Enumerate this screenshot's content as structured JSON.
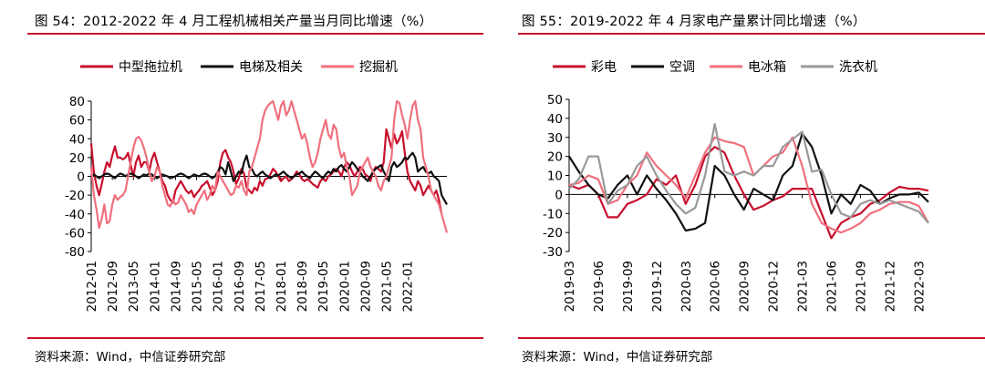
{
  "left": {
    "title": "图 54：2012-2022 年 4 月工程机械相关产量当月同比增速（%）",
    "source": "资料来源：Wind，中信证券研究部"
  },
  "right": {
    "title": "图 55：2019-2022 年 4 月家电产量累计同比增速（%）",
    "source": "资料来源：Wind，中信证券研究部"
  },
  "chart_data": [
    {
      "type": "line",
      "ylim": [
        -80,
        80
      ],
      "yticks": [
        80,
        60,
        40,
        20,
        0,
        -20,
        -40,
        -60,
        -80
      ],
      "x_tick_labels": [
        "2012-01",
        "2012-09",
        "2013-05",
        "2014-01",
        "2014-09",
        "2015-05",
        "2016-01",
        "2016-09",
        "2017-05",
        "2018-01",
        "2018-09",
        "2019-05",
        "2020-01",
        "2020-09",
        "2021-05",
        "2022-01"
      ],
      "x_start": "2012-01",
      "legend_position": "top",
      "grid": false,
      "series": [
        {
          "name": "中型拖拉机",
          "color": "#c8102e",
          "values": [
            35,
            5,
            -10,
            -20,
            -8,
            5,
            15,
            10,
            22,
            32,
            20,
            20,
            18,
            20,
            25,
            12,
            0,
            15,
            22,
            10,
            15,
            15,
            5,
            18,
            25,
            15,
            5,
            -5,
            -10,
            -20,
            -25,
            -28,
            -15,
            -10,
            -5,
            -10,
            -15,
            -18,
            -15,
            -22,
            -18,
            -15,
            -10,
            -8,
            -5,
            -12,
            -20,
            -15,
            -5,
            15,
            25,
            28,
            20,
            15,
            5,
            -8,
            -2,
            8,
            3,
            -12,
            -15,
            -18,
            -12,
            -15,
            -5,
            -10,
            -3,
            -2,
            2,
            8,
            5,
            0,
            -5,
            -2,
            0,
            -5,
            -3,
            0,
            5,
            2,
            -3,
            -5,
            -3,
            -5,
            -8,
            -10,
            -12,
            -5,
            -2,
            -5,
            0,
            2,
            5,
            8,
            5,
            0,
            10,
            15,
            12,
            5,
            0,
            5,
            10,
            8,
            2,
            0,
            -5,
            5,
            10,
            8,
            5,
            15,
            50,
            40,
            30,
            45,
            35,
            40,
            48,
            25,
            5,
            -5,
            -10,
            -15,
            -5,
            -10,
            -20,
            -15,
            -10,
            -15,
            -20,
            -15,
            -25,
            -40
          ]
        },
        {
          "name": "电梯及相关",
          "color": "#111111",
          "values": [
            0,
            2,
            0,
            -2,
            0,
            2,
            3,
            2,
            0,
            -2,
            1,
            3,
            2,
            0,
            2,
            3,
            2,
            0,
            -2,
            0,
            2,
            1,
            3,
            2,
            0,
            -2,
            0,
            2,
            1,
            0,
            -2,
            -1,
            0,
            2,
            3,
            2,
            0,
            -2,
            0,
            2,
            1,
            0,
            2,
            3,
            2,
            0,
            -2,
            0,
            5,
            10,
            8,
            2,
            15,
            5,
            -5,
            0,
            5,
            3,
            15,
            22,
            10,
            8,
            2,
            0,
            3,
            5,
            2,
            0,
            -2,
            0,
            2,
            1,
            3,
            5,
            2,
            0,
            -2,
            0,
            2,
            3,
            5,
            2,
            0,
            -2,
            2,
            5,
            3,
            0,
            -2,
            2,
            5,
            3,
            8,
            5,
            10,
            12,
            8,
            5,
            10,
            15,
            12,
            8,
            5,
            0,
            -2,
            -5,
            0,
            5,
            8,
            10,
            12,
            5,
            0,
            -5,
            10,
            15,
            10,
            12,
            15,
            20,
            18,
            22,
            25,
            20,
            5,
            8,
            10,
            5,
            3,
            5,
            0,
            -2,
            -5,
            -20,
            -25,
            -30
          ]
        },
        {
          "name": "挖掘机",
          "color": "#f0707e",
          "values": [
            10,
            -20,
            -35,
            -55,
            -45,
            -30,
            -50,
            -48,
            -30,
            -20,
            -25,
            -22,
            -20,
            -15,
            0,
            15,
            30,
            40,
            42,
            38,
            30,
            20,
            5,
            -5,
            0,
            10,
            5,
            -10,
            -20,
            -30,
            -32,
            -25,
            -30,
            -28,
            -20,
            -25,
            -30,
            -38,
            -35,
            -40,
            -30,
            -25,
            -20,
            -15,
            -25,
            -20,
            -10,
            -15,
            5,
            0,
            -5,
            -10,
            -15,
            -20,
            -18,
            -10,
            -12,
            -5,
            -15,
            -20,
            5,
            10,
            20,
            30,
            40,
            60,
            70,
            75,
            78,
            80,
            70,
            60,
            75,
            80,
            65,
            70,
            80,
            70,
            60,
            50,
            40,
            45,
            35,
            20,
            10,
            15,
            25,
            40,
            50,
            60,
            45,
            40,
            55,
            50,
            30,
            20,
            25,
            10,
            0,
            -20,
            -15,
            -10,
            5,
            10,
            15,
            20,
            10,
            5,
            0,
            -10,
            -15,
            -5,
            0,
            10,
            20,
            60,
            80,
            78,
            65,
            55,
            40,
            60,
            75,
            80,
            60,
            50,
            20,
            10,
            0,
            -15,
            -20,
            -25,
            -30,
            -40,
            -50,
            -60
          ]
        }
      ]
    },
    {
      "type": "line",
      "ylim": [
        -30,
        50
      ],
      "yticks": [
        50,
        40,
        30,
        20,
        10,
        0,
        -10,
        -20,
        -30
      ],
      "x_tick_labels": [
        "2019-03",
        "2019-06",
        "2019-09",
        "2019-12",
        "2020-03",
        "2020-06",
        "2020-09",
        "2020-12",
        "2021-03",
        "2021-06",
        "2021-09",
        "2021-12",
        "2022-03"
      ],
      "x_start": "2019-03",
      "legend_position": "top",
      "grid": false,
      "series": [
        {
          "name": "彩电",
          "color": "#c8102e",
          "values": [
            5,
            3,
            5,
            0,
            -12,
            -12,
            -5,
            -3,
            0,
            8,
            5,
            10,
            -5,
            5,
            20,
            25,
            22,
            10,
            0,
            -8,
            -6,
            -3,
            -1,
            3,
            3,
            3,
            -10,
            -23,
            -15,
            -12,
            -10,
            -5,
            -3,
            1,
            4,
            3,
            3,
            2
          ]
        },
        {
          "name": "空调",
          "color": "#111111",
          "values": [
            20,
            12,
            5,
            0,
            -2,
            5,
            10,
            0,
            10,
            3,
            -3,
            -10,
            -19,
            -18,
            -15,
            15,
            10,
            0,
            -8,
            3,
            0,
            -3,
            10,
            15,
            32,
            25,
            10,
            -10,
            0,
            -5,
            5,
            2,
            -5,
            -2,
            0,
            0,
            1,
            -4
          ]
        },
        {
          "name": "电冰箱",
          "color": "#f0707e",
          "values": [
            5,
            6,
            10,
            8,
            -5,
            -3,
            5,
            10,
            22,
            15,
            10,
            5,
            -2,
            10,
            22,
            30,
            28,
            27,
            25,
            10,
            15,
            20,
            22,
            30,
            15,
            -5,
            -15,
            -18,
            -20,
            -18,
            -15,
            -10,
            -8,
            -5,
            -4,
            -4,
            -6,
            -15
          ]
        },
        {
          "name": "洗衣机",
          "color": "#999999",
          "values": [
            3,
            8,
            20,
            20,
            -5,
            2,
            5,
            15,
            20,
            10,
            2,
            -5,
            -10,
            -7,
            10,
            37,
            12,
            10,
            12,
            10,
            15,
            15,
            25,
            29,
            33,
            12,
            13,
            0,
            -10,
            -12,
            -5,
            -3,
            -5,
            -3,
            -5,
            -7,
            -9,
            -15
          ]
        }
      ]
    }
  ]
}
